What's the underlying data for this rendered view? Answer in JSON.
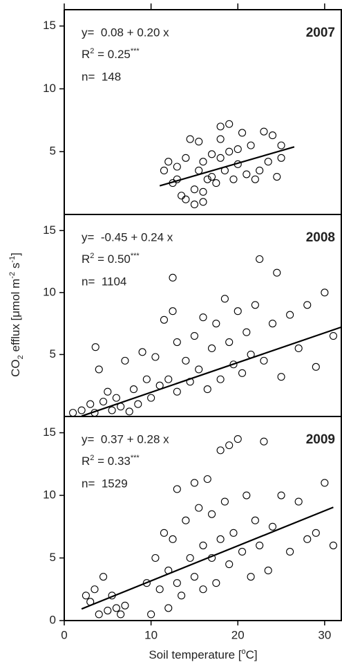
{
  "chart_data": [
    {
      "type": "scatter",
      "year": "2007",
      "equation": "y=  0.08 + 0.20 x",
      "r2": [
        {
          "text": "R",
          "shift": "none"
        },
        {
          "text": "2",
          "shift": "super"
        },
        {
          "text": " = 0.25",
          "shift": "none"
        },
        {
          "text": "***",
          "shift": "super"
        }
      ],
      "n": "n=  148",
      "x": [
        11.5,
        12,
        12.5,
        13,
        13.5,
        14,
        14,
        14.5,
        15,
        15,
        15.5,
        15.5,
        16,
        16,
        16.5,
        17,
        17,
        17.5,
        18,
        18,
        18.5,
        19,
        19,
        19.5,
        20,
        20.5,
        21,
        21.5,
        22,
        22.5,
        23,
        23.5,
        24,
        24.5,
        25,
        25,
        13,
        16,
        18,
        20
      ],
      "values": [
        3.5,
        4.2,
        2.5,
        3.8,
        1.5,
        4.5,
        1.2,
        6.0,
        2.0,
        0.8,
        3.5,
        5.8,
        1.0,
        4.2,
        2.8,
        3.0,
        4.8,
        2.5,
        7.0,
        4.5,
        3.5,
        7.2,
        5.0,
        2.8,
        4.0,
        6.5,
        3.2,
        5.5,
        2.8,
        3.5,
        6.6,
        4.2,
        6.3,
        3.0,
        5.5,
        4.5,
        2.8,
        1.8,
        6.0,
        5.2
      ],
      "fit": {
        "intercept": 0.08,
        "slope": 0.2,
        "x_range": [
          11,
          26.5
        ]
      },
      "color": "#000000",
      "xlim": [
        0,
        32
      ],
      "ylim": [
        0,
        16.3
      ],
      "yticks": [
        5,
        10,
        15
      ]
    },
    {
      "type": "scatter",
      "year": "2008",
      "equation": "y=  -0.45 + 0.24 x",
      "r2": [
        {
          "text": "R",
          "shift": "none"
        },
        {
          "text": "2",
          "shift": "super"
        },
        {
          "text": " = 0.50",
          "shift": "none"
        },
        {
          "text": "***",
          "shift": "super"
        }
      ],
      "n": "n=  1104",
      "x": [
        1,
        2,
        3,
        3.5,
        4,
        4.5,
        5,
        5.5,
        6,
        6.5,
        7,
        7.5,
        8,
        8.5,
        9,
        9.5,
        10,
        10.5,
        11,
        11.5,
        12,
        12.5,
        13,
        13,
        14,
        14.5,
        15,
        15.5,
        16,
        16.5,
        17,
        17.5,
        18,
        18.5,
        19,
        19.5,
        20,
        20.5,
        21,
        21.5,
        22,
        22.5,
        23,
        24,
        24.5,
        25,
        26,
        27,
        28,
        29,
        30,
        31,
        3.6,
        12.5
      ],
      "values": [
        0.3,
        0.5,
        1.0,
        0.3,
        3.8,
        1.2,
        2.0,
        0.5,
        1.5,
        0.8,
        4.5,
        0.4,
        2.2,
        1.0,
        5.2,
        3.0,
        1.5,
        4.8,
        2.5,
        7.8,
        3.0,
        11.2,
        6.0,
        2.0,
        4.5,
        2.8,
        6.5,
        3.8,
        8.0,
        2.2,
        5.5,
        7.5,
        3.0,
        9.5,
        6.0,
        4.2,
        8.5,
        3.5,
        6.8,
        5.0,
        9.0,
        12.7,
        4.5,
        7.5,
        11.6,
        3.2,
        8.2,
        5.5,
        9.0,
        4.0,
        10.0,
        6.5,
        5.6,
        8.5
      ],
      "fit": {
        "intercept": -0.45,
        "slope": 0.24,
        "x_range": [
          2,
          32
        ]
      },
      "color": "#000000",
      "xlim": [
        0,
        32
      ],
      "ylim": [
        0,
        16.3
      ],
      "yticks": [
        5,
        10,
        15
      ]
    },
    {
      "type": "scatter",
      "year": "2009",
      "equation": "y=  0.37 + 0.28 x",
      "r2": [
        {
          "text": "R",
          "shift": "none"
        },
        {
          "text": "2",
          "shift": "super"
        },
        {
          "text": " = 0.33",
          "shift": "none"
        },
        {
          "text": "***",
          "shift": "super"
        }
      ],
      "n": "n=  1529",
      "x": [
        2.5,
        3,
        3.5,
        4,
        4.5,
        5,
        5.5,
        6,
        6.5,
        7,
        9.5,
        10,
        10.5,
        11,
        11.5,
        12,
        12,
        12.5,
        13,
        13,
        13.5,
        14,
        14.5,
        15,
        15,
        15.5,
        16,
        16,
        16.5,
        17,
        17,
        17.5,
        18,
        18,
        18.5,
        19,
        19,
        19.5,
        20,
        20.5,
        21,
        21.5,
        22,
        22.5,
        23,
        23.5,
        24,
        25,
        26,
        27,
        28,
        29,
        30,
        31
      ],
      "values": [
        2.0,
        1.5,
        2.5,
        0.5,
        3.5,
        0.8,
        2.0,
        1.0,
        0.5,
        1.2,
        3.0,
        0.5,
        5.0,
        2.5,
        7.0,
        1.0,
        4.0,
        6.5,
        3.0,
        10.5,
        2.0,
        8.0,
        5.0,
        11.0,
        3.5,
        9.0,
        6.0,
        2.5,
        11.3,
        5.0,
        8.5,
        3.0,
        13.6,
        6.5,
        9.5,
        4.5,
        14.0,
        7.0,
        14.5,
        5.5,
        10.0,
        3.5,
        8.0,
        6.0,
        14.3,
        4.0,
        7.5,
        10.0,
        5.5,
        9.5,
        6.5,
        7.0,
        11.0,
        6.0
      ],
      "fit": {
        "intercept": 0.37,
        "slope": 0.28,
        "x_range": [
          2,
          31
        ]
      },
      "color": "#000000",
      "xlim": [
        0,
        32
      ],
      "ylim": [
        0,
        16.3
      ],
      "yticks": [
        0,
        5,
        10,
        15
      ],
      "xticks": [
        0,
        10,
        20,
        30
      ],
      "xlabel": [
        {
          "text": "Soil temperature [",
          "shift": "none"
        },
        {
          "text": "o",
          "shift": "super"
        },
        {
          "text": "C]",
          "shift": "none"
        }
      ],
      "ylabel": [
        {
          "text": "CO",
          "shift": "none"
        },
        {
          "text": "2",
          "shift": "sub"
        },
        {
          "text": " efflux [",
          "shift": "none"
        },
        {
          "text": "μmol",
          "shift": "none"
        },
        {
          "text": " m",
          "shift": "none"
        },
        {
          "text": "-2",
          "shift": "super"
        },
        {
          "text": " s",
          "shift": "none"
        },
        {
          "text": "-1",
          "shift": "super"
        },
        {
          "text": "]",
          "shift": "none"
        }
      ]
    }
  ]
}
